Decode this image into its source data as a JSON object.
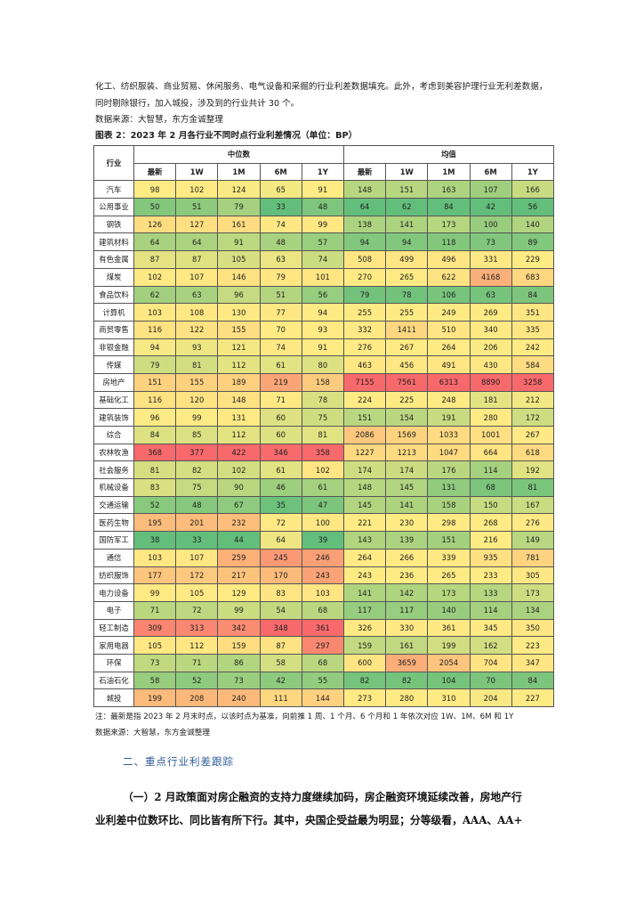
{
  "intro": {
    "line1": "化工、纺织服装、商业贸易、休闲服务、电气设备和采掘的行业利差数据填充。此外，考虑到美容护理行业无利差数据，",
    "line2": "同时剔除银行，加入城投，涉及到的行业共计 30 个。"
  },
  "source_top": "数据来源：大智慧，东方金诚整理",
  "figure_title": "图表 2：2023 年 2 月各行业不同时点行业利差情况（单位：BP）",
  "table": {
    "industry_header": "行业",
    "group_median": "中位数",
    "group_mean": "均值",
    "sub_headers": [
      "最新",
      "1W",
      "1M",
      "6M",
      "1Y"
    ],
    "rows": [
      {
        "name": "汽车",
        "median": [
          98,
          102,
          124,
          65,
          91
        ],
        "mean": [
          148,
          151,
          163,
          107,
          166
        ]
      },
      {
        "name": "公用事业",
        "median": [
          50,
          51,
          79,
          33,
          48
        ],
        "mean": [
          64,
          62,
          84,
          42,
          56
        ]
      },
      {
        "name": "钢铁",
        "median": [
          126,
          127,
          161,
          74,
          99
        ],
        "mean": [
          138,
          141,
          173,
          100,
          140
        ]
      },
      {
        "name": "建筑材料",
        "median": [
          64,
          64,
          91,
          48,
          57
        ],
        "mean": [
          94,
          94,
          118,
          73,
          89
        ]
      },
      {
        "name": "有色金属",
        "median": [
          87,
          87,
          105,
          63,
          74
        ],
        "mean": [
          508,
          499,
          496,
          331,
          229
        ]
      },
      {
        "name": "煤炭",
        "median": [
          102,
          107,
          146,
          79,
          101
        ],
        "mean": [
          270,
          265,
          622,
          4168,
          683
        ]
      },
      {
        "name": "食品饮料",
        "median": [
          62,
          63,
          96,
          51,
          56
        ],
        "mean": [
          79,
          78,
          106,
          63,
          84
        ]
      },
      {
        "name": "计算机",
        "median": [
          103,
          108,
          130,
          77,
          94
        ],
        "mean": [
          255,
          255,
          249,
          269,
          351
        ]
      },
      {
        "name": "商贸零售",
        "median": [
          116,
          122,
          155,
          70,
          93
        ],
        "mean": [
          332,
          1411,
          510,
          340,
          335
        ]
      },
      {
        "name": "非银金融",
        "median": [
          94,
          93,
          121,
          74,
          91
        ],
        "mean": [
          276,
          267,
          264,
          206,
          242
        ]
      },
      {
        "name": "传媒",
        "median": [
          79,
          81,
          112,
          61,
          80
        ],
        "mean": [
          463,
          456,
          491,
          430,
          584
        ]
      },
      {
        "name": "房地产",
        "median": [
          151,
          155,
          189,
          219,
          158
        ],
        "mean": [
          7155,
          7561,
          6313,
          8890,
          3258
        ]
      },
      {
        "name": "基础化工",
        "median": [
          116,
          120,
          148,
          71,
          78
        ],
        "mean": [
          224,
          225,
          248,
          181,
          212
        ]
      },
      {
        "name": "建筑装饰",
        "median": [
          96,
          99,
          131,
          60,
          75
        ],
        "mean": [
          151,
          154,
          191,
          280,
          172
        ]
      },
      {
        "name": "综合",
        "median": [
          84,
          85,
          112,
          60,
          81
        ],
        "mean": [
          2086,
          1569,
          1033,
          1001,
          267
        ]
      },
      {
        "name": "农林牧渔",
        "median": [
          368,
          377,
          422,
          346,
          358
        ],
        "mean": [
          1227,
          1213,
          1047,
          664,
          618
        ]
      },
      {
        "name": "社会服务",
        "median": [
          81,
          82,
          102,
          61,
          102
        ],
        "mean": [
          174,
          174,
          176,
          114,
          192
        ]
      },
      {
        "name": "机械设备",
        "median": [
          83,
          75,
          90,
          46,
          61
        ],
        "mean": [
          148,
          145,
          131,
          68,
          81
        ]
      },
      {
        "name": "交通运输",
        "median": [
          52,
          48,
          67,
          35,
          47
        ],
        "mean": [
          145,
          141,
          158,
          150,
          167
        ]
      },
      {
        "name": "医药生物",
        "median": [
          195,
          201,
          232,
          72,
          100
        ],
        "mean": [
          221,
          230,
          298,
          268,
          276
        ]
      },
      {
        "name": "国防军工",
        "median": [
          38,
          33,
          44,
          64,
          39
        ],
        "mean": [
          143,
          139,
          151,
          216,
          149
        ]
      },
      {
        "name": "通信",
        "median": [
          103,
          107,
          259,
          245,
          246
        ],
        "mean": [
          264,
          266,
          339,
          935,
          781
        ]
      },
      {
        "name": "纺织服饰",
        "median": [
          177,
          172,
          217,
          170,
          243
        ],
        "mean": [
          243,
          236,
          265,
          233,
          305
        ]
      },
      {
        "name": "电力设备",
        "median": [
          99,
          105,
          129,
          83,
          103
        ],
        "mean": [
          141,
          142,
          173,
          133,
          173
        ]
      },
      {
        "name": "电子",
        "median": [
          71,
          72,
          99,
          54,
          68
        ],
        "mean": [
          117,
          117,
          140,
          114,
          134
        ]
      },
      {
        "name": "轻工制造",
        "median": [
          309,
          313,
          342,
          348,
          361
        ],
        "mean": [
          326,
          330,
          361,
          345,
          350
        ]
      },
      {
        "name": "家用电器",
        "median": [
          105,
          112,
          159,
          87,
          297
        ],
        "mean": [
          159,
          161,
          199,
          162,
          223
        ]
      },
      {
        "name": "环保",
        "median": [
          73,
          71,
          86,
          58,
          68
        ],
        "mean": [
          600,
          3659,
          2054,
          704,
          347
        ]
      },
      {
        "name": "石油石化",
        "median": [
          58,
          52,
          73,
          42,
          55
        ],
        "mean": [
          82,
          82,
          104,
          70,
          84
        ]
      },
      {
        "name": "城投",
        "median": [
          199,
          208,
          240,
          111,
          144
        ],
        "mean": [
          273,
          280,
          310,
          204,
          227
        ]
      }
    ]
  },
  "note": "注：最新是指 2023 年 2 月末时点，以该时点为基准，向前推 1 周、1 个月、6 个月和 1 年依次对应 1W、1M、6M 和 1Y",
  "source_bottom": "数据来源：大智慧，东方金诚整理",
  "section_heading": "二、重点行业利差跟踪",
  "bold_para": {
    "line1": "（一）2 月政策面对房企融资的支持力度继续加码，房企融资环境延续改善，房地产行",
    "line2": "业利差中位数环比、同比皆有所下行。其中，央国企受益最为明显；分等级看，AAA、AA+"
  },
  "colors": {
    "scale_low": "#63be7b",
    "scale_mid": "#ffeb84",
    "scale_high": "#f8696b",
    "heading": "#2f5d9a"
  }
}
